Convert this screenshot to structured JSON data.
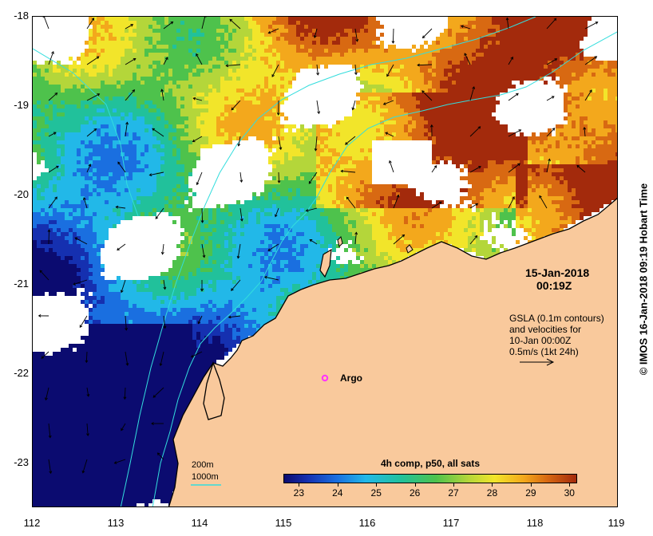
{
  "map": {
    "lat_labels": [
      "-18",
      "-19",
      "-20",
      "-21",
      "-22",
      "-23"
    ],
    "lon_labels": [
      "112",
      "113",
      "114",
      "115",
      "116",
      "117",
      "118",
      "119"
    ],
    "lat_range": [
      -23.5,
      -18
    ],
    "lon_range": [
      112,
      119
    ]
  },
  "timestamp": {
    "date": "15-Jan-2018",
    "time": "00:19Z"
  },
  "gsla_note": {
    "line1": "GSLA (0.1m contours)",
    "line2": "and velocities for",
    "line3": "10-Jan 00:00Z",
    "line4": "0.5m/s (1kt 24h)"
  },
  "argo": {
    "label": "Argo",
    "lon": 115.5,
    "lat": -22.05,
    "color": "#ff33ff"
  },
  "bathymetry_legend": {
    "label_200m": "200m",
    "label_1000m": "1000m",
    "color": "#33dddd"
  },
  "colorbar": {
    "title": "4h comp, p50, all sats",
    "ticks": [
      "23",
      "24",
      "25",
      "26",
      "27",
      "28",
      "29",
      "30"
    ],
    "range": [
      22.6,
      30.2
    ]
  },
  "credit": "© IMOS 16-Jan-2018 09:19 Hobart Time",
  "colors": {
    "land": "#f9c99c",
    "contour": "#33dddd",
    "coast": "#000000"
  }
}
